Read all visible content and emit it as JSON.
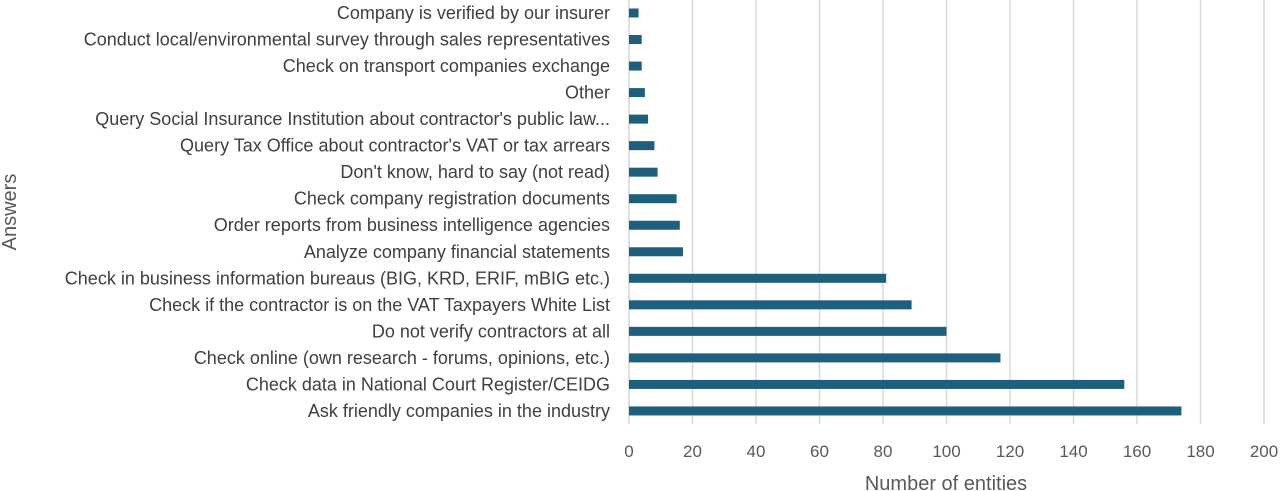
{
  "chart_data": {
    "type": "bar",
    "orientation": "horizontal",
    "xlabel": "Number of entities",
    "ylabel": "Answers",
    "xlim": [
      0,
      200
    ],
    "xticks": [
      "0",
      "20",
      "40",
      "60",
      "80",
      "100",
      "120",
      "140",
      "160",
      "180",
      "200"
    ],
    "grid": true,
    "bar_color": "#1f5f7e",
    "categories": [
      "Company is verified by our insurer",
      "Conduct local/environmental survey through sales representatives",
      "Check on transport companies exchange",
      "Other",
      "Query Social Insurance Institution about contractor's public law...",
      "Query Tax Office about contractor's VAT or tax arrears",
      "Don't know, hard to say (not read)",
      "Check company registration documents",
      "Order reports from business intelligence agencies",
      "Analyze company financial statements",
      "Check in business information bureaus (BIG, KRD, ERIF, mBIG etc.)",
      "Check if the contractor is on the VAT Taxpayers White List",
      "Do not verify contractors at all",
      "Check online (own research - forums, opinions, etc.)",
      "Check data in National Court Register/CEIDG",
      "Ask friendly companies in the industry"
    ],
    "values": [
      3,
      4,
      4,
      5,
      6,
      8,
      9,
      15,
      16,
      17,
      81,
      89,
      100,
      117,
      156,
      174
    ]
  }
}
